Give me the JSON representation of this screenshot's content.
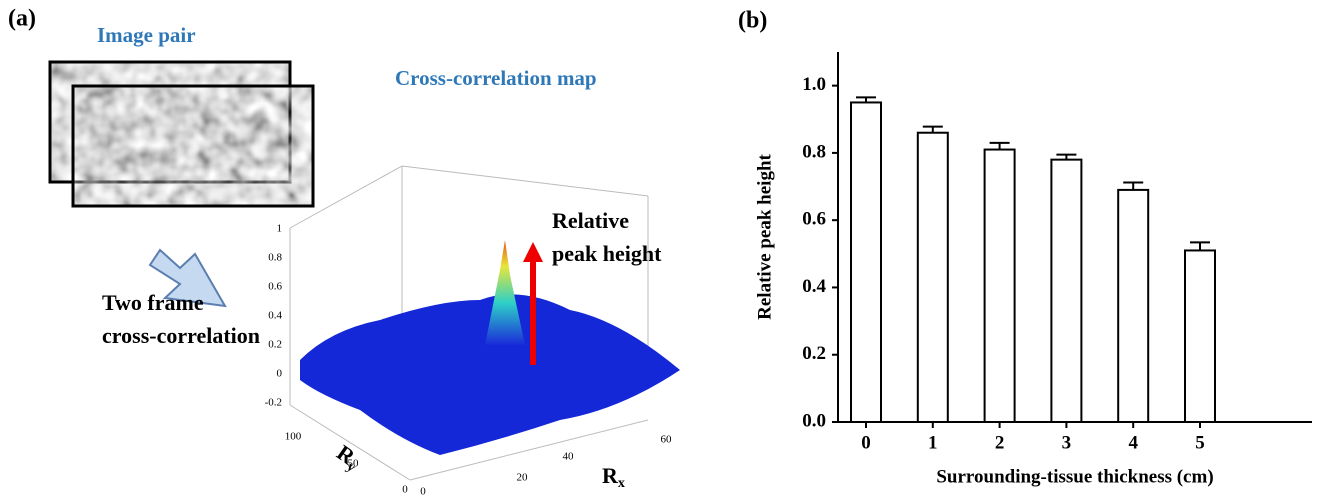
{
  "panel_a": {
    "label": "(a)",
    "image_pair_title": "Image pair",
    "map_title": "Cross-correlation map",
    "arrow_text": [
      "Two frame",
      "cross-correlation"
    ],
    "peak_text": [
      "Relative",
      "peak height"
    ],
    "surface": {
      "zticks": [
        1,
        0.8,
        0.6,
        0.4,
        0.2,
        0,
        -0.2
      ],
      "yticks": [
        100,
        50,
        0
      ],
      "xticks": [
        0,
        20,
        40,
        60
      ],
      "y_label": {
        "base": "R",
        "sub": "y"
      },
      "x_label": {
        "base": "R",
        "sub": "x"
      }
    }
  },
  "chart_data": {
    "type": "bar",
    "label": "(b)",
    "categories": [
      "0",
      "1",
      "2",
      "3",
      "4",
      "5"
    ],
    "values": [
      0.95,
      0.86,
      0.81,
      0.78,
      0.69,
      0.51
    ],
    "errors": [
      0.015,
      0.018,
      0.02,
      0.015,
      0.022,
      0.024
    ],
    "x_label": "Surrounding-tissue thickness (cm)",
    "y_label": "Relative peak height",
    "ylim": [
      0,
      1.1
    ],
    "yticks": [
      {
        "value": 0,
        "label": "0.0"
      },
      0.2,
      0.4,
      0.6,
      0.8,
      {
        "value": 1,
        "label": "1.0"
      }
    ],
    "color": "#ffffff",
    "grid": false
  }
}
